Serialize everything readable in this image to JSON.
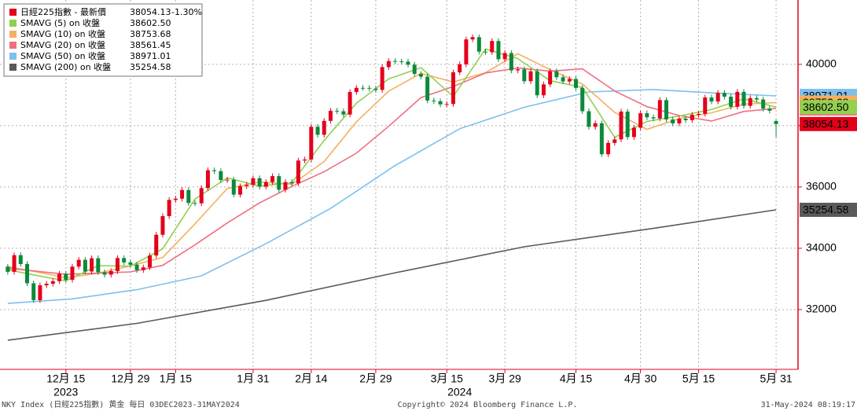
{
  "chart_data": {
    "type": "candlestick",
    "up_color": "#e3001b",
    "down_color": "#0b8a3a",
    "xlim": [
      -1.2,
      122.4
    ],
    "ylim": [
      30050,
      42100
    ],
    "yticks": [
      32000,
      34000,
      36000,
      38000,
      40000
    ],
    "xticks": [
      {
        "value": 9,
        "label": "12月 15"
      },
      {
        "value": 19,
        "label": "12月 29"
      },
      {
        "value": 26,
        "label": "1月 15"
      },
      {
        "value": 38,
        "label": "1月 31"
      },
      {
        "value": 47,
        "label": "2月 14"
      },
      {
        "value": 57,
        "label": "2月 29"
      },
      {
        "value": 68,
        "label": "3月 15"
      },
      {
        "value": 77,
        "label": "3月 29"
      },
      {
        "value": 88,
        "label": "4月 15"
      },
      {
        "value": 98,
        "label": "4月 30"
      },
      {
        "value": 107,
        "label": "5月 15"
      },
      {
        "value": 119,
        "label": "5月 31"
      }
    ],
    "year_labels": [
      {
        "value": 9,
        "label": "2023"
      },
      {
        "value": 70,
        "label": "2024"
      }
    ],
    "grid": true,
    "price": {
      "name": "日經225指數 - 最新價",
      "color": "#e3001b",
      "last": 38054.13,
      "last_label": "38054.13",
      "change": -1.3,
      "change_label": "-1.30%"
    },
    "ohlc": [
      [
        33400,
        33490,
        33141,
        33231
      ],
      [
        33231,
        33865,
        33141,
        33775
      ],
      [
        33775,
        33865,
        33396,
        33486
      ],
      [
        33486,
        33576,
        32768,
        32858
      ],
      [
        32858,
        32948,
        32217,
        32307
      ],
      [
        32307,
        32881,
        32217,
        32791
      ],
      [
        32791,
        32933,
        32701,
        32843
      ],
      [
        32843,
        33016,
        32753,
        32926
      ],
      [
        32926,
        33259,
        32836,
        33169
      ],
      [
        33169,
        33259,
        32880,
        32970
      ],
      [
        32970,
        33492,
        32880,
        33402
      ],
      [
        33402,
        33714,
        33312,
        33624
      ],
      [
        33624,
        33714,
        33152,
        33242
      ],
      [
        33242,
        33765,
        33152,
        33675
      ],
      [
        33675,
        33765,
        33129,
        33219
      ],
      [
        33219,
        33309,
        33050,
        33140
      ],
      [
        33140,
        33345,
        33050,
        33255
      ],
      [
        33255,
        33771,
        33165,
        33681
      ],
      [
        33681,
        33771,
        33450,
        33540
      ],
      [
        33540,
        33630,
        33374,
        33464
      ],
      [
        33464,
        33554,
        33198,
        33288
      ],
      [
        33288,
        33467,
        33198,
        33377
      ],
      [
        33377,
        33853,
        33287,
        33763
      ],
      [
        33763,
        34531,
        33673,
        34441
      ],
      [
        34441,
        35139,
        34351,
        35049
      ],
      [
        35049,
        35667,
        34959,
        35577
      ],
      [
        35577,
        35709,
        35487,
        35619
      ],
      [
        35619,
        35991,
        35529,
        35901
      ],
      [
        35901,
        35991,
        35387,
        35477
      ],
      [
        35477,
        35567,
        35377,
        35467
      ],
      [
        35467,
        36053,
        35377,
        35963
      ],
      [
        35963,
        36636,
        35873,
        36546
      ],
      [
        36546,
        36636,
        36427,
        36517
      ],
      [
        36517,
        36607,
        36136,
        36226
      ],
      [
        36226,
        36326,
        36136,
        36236
      ],
      [
        36236,
        36326,
        35661,
        35751
      ],
      [
        35751,
        36116,
        35661,
        36026
      ],
      [
        36026,
        36155,
        35936,
        36065
      ],
      [
        36065,
        36376,
        35975,
        36286
      ],
      [
        36286,
        36376,
        35921,
        36011
      ],
      [
        36011,
        36249,
        35921,
        36159
      ],
      [
        36159,
        36444,
        36069,
        36354
      ],
      [
        36354,
        36444,
        35819,
        35909
      ],
      [
        35909,
        36250,
        35819,
        36160
      ],
      [
        36160,
        36250,
        36029,
        36119
      ],
      [
        36119,
        36953,
        36029,
        36863
      ],
      [
        36863,
        36987,
        36773,
        36897
      ],
      [
        36897,
        38053,
        36807,
        37963
      ],
      [
        37963,
        38053,
        37613,
        37703
      ],
      [
        37703,
        38247,
        37613,
        38157
      ],
      [
        38157,
        38577,
        38067,
        38487
      ],
      [
        38487,
        38577,
        38380,
        38470
      ],
      [
        38470,
        38560,
        38273,
        38363
      ],
      [
        38363,
        39188,
        38273,
        39098
      ],
      [
        39098,
        39324,
        39008,
        39234
      ],
      [
        39234,
        39324,
        39143,
        39233
      ],
      [
        39233,
        39323,
        39118,
        39208
      ],
      [
        39208,
        39298,
        39076,
        39166
      ],
      [
        39166,
        40000,
        39076,
        39910
      ],
      [
        39910,
        40199,
        39820,
        40109
      ],
      [
        40109,
        40199,
        40007,
        40097
      ],
      [
        40097,
        40187,
        40000,
        40090
      ],
      [
        40090,
        40180,
        39901,
        39991
      ],
      [
        39991,
        40081,
        39598,
        39688
      ],
      [
        39688,
        39778,
        39508,
        39598
      ],
      [
        39598,
        39688,
        38730,
        38820
      ],
      [
        38820,
        38910,
        38707,
        38797
      ],
      [
        38797,
        38887,
        38605,
        38695
      ],
      [
        38695,
        38797,
        38605,
        38707
      ],
      [
        38707,
        39830,
        38617,
        39740
      ],
      [
        39740,
        40093,
        39650,
        40003
      ],
      [
        40003,
        40905,
        39913,
        40815
      ],
      [
        40815,
        40978,
        40725,
        40888
      ],
      [
        40888,
        40978,
        40324,
        40414
      ],
      [
        40414,
        40504,
        40308,
        40398
      ],
      [
        40398,
        40852,
        40308,
        40762
      ],
      [
        40762,
        40852,
        40078,
        40168
      ],
      [
        40168,
        40459,
        40078,
        40369
      ],
      [
        40369,
        40459,
        39713,
        39803
      ],
      [
        39803,
        39928,
        39713,
        39838
      ],
      [
        39838,
        39928,
        39361,
        39451
      ],
      [
        39451,
        39863,
        39361,
        39773
      ],
      [
        39773,
        39863,
        38902,
        38992
      ],
      [
        38992,
        39437,
        38902,
        39347
      ],
      [
        39347,
        39863,
        39257,
        39773
      ],
      [
        39773,
        39863,
        39491,
        39581
      ],
      [
        39581,
        39671,
        39352,
        39442
      ],
      [
        39442,
        39613,
        39352,
        39523
      ],
      [
        39523,
        39613,
        39142,
        39232
      ],
      [
        39232,
        39322,
        38381,
        38471
      ],
      [
        38471,
        38561,
        37872,
        37962
      ],
      [
        37962,
        38169,
        37872,
        38079
      ],
      [
        38079,
        38169,
        36978,
        37068
      ],
      [
        37068,
        37528,
        36978,
        37438
      ],
      [
        37438,
        37642,
        37348,
        37552
      ],
      [
        37552,
        38550,
        37462,
        38460
      ],
      [
        38460,
        38550,
        37538,
        37628
      ],
      [
        37628,
        38024,
        37538,
        37934
      ],
      [
        37934,
        38495,
        37844,
        38405
      ],
      [
        38405,
        38495,
        38184,
        38274
      ],
      [
        38274,
        38364,
        38146,
        38236
      ],
      [
        38236,
        38925,
        38146,
        38835
      ],
      [
        38835,
        38925,
        38112,
        38202
      ],
      [
        38202,
        38292,
        37983,
        38073
      ],
      [
        38073,
        38319,
        37983,
        38229
      ],
      [
        38229,
        38319,
        38089,
        38179
      ],
      [
        38179,
        38446,
        38089,
        38356
      ],
      [
        38356,
        38475,
        38266,
        38385
      ],
      [
        38385,
        39010,
        38295,
        38920
      ],
      [
        38920,
        39010,
        38697,
        38787
      ],
      [
        38787,
        39159,
        38697,
        39069
      ],
      [
        39069,
        39159,
        38856,
        38946
      ],
      [
        38946,
        39036,
        38527,
        38617
      ],
      [
        38617,
        39193,
        38527,
        39103
      ],
      [
        39103,
        39193,
        38556,
        38646
      ],
      [
        38646,
        38990,
        38556,
        38900
      ],
      [
        38900,
        38990,
        38765,
        38855
      ],
      [
        38855,
        38945,
        38466,
        38556
      ],
      [
        38556,
        38646,
        38397,
        38487
      ],
      [
        38150,
        38200,
        37620,
        38054.13
      ]
    ],
    "series": [
      {
        "name": "SMAVG (200)  on 收盤",
        "color": "#5a5a5a",
        "tag_text": "#ffffff",
        "last": 35254.58,
        "last_label": "35254.58",
        "x": [
          0,
          20,
          40,
          60,
          80,
          100,
          119
        ],
        "values": [
          31000,
          31550,
          32300,
          33200,
          34050,
          34650,
          35254.58
        ]
      },
      {
        "name": "SMAVG (50)  on 收盤",
        "color": "#7cc0ef",
        "tag_text": "#1a3a5a",
        "last": 38971.01,
        "last_label": "38971.01",
        "x": [
          0,
          10,
          20,
          30,
          40,
          50,
          60,
          70,
          80,
          90,
          100,
          110,
          119
        ],
        "values": [
          32200,
          32350,
          32650,
          33100,
          34150,
          35300,
          36700,
          37900,
          38600,
          39100,
          39180,
          39060,
          38971.01
        ]
      },
      {
        "name": "SMAVG (10)  on 收盤",
        "color": "#f5b05e",
        "tag_text": "#000000",
        "last": 38753.68,
        "last_label": "38753.68",
        "x": [
          0,
          4,
          9,
          14,
          19,
          24,
          29,
          34,
          39,
          44,
          49,
          54,
          59,
          64,
          69,
          74,
          79,
          84,
          89,
          94,
          99,
          104,
          109,
          114,
          119
        ],
        "values": [
          33400,
          33250,
          33036,
          33186,
          33424,
          33700,
          34796,
          35953,
          36163,
          36084,
          36829,
          38124,
          39128,
          39709,
          39423,
          39728,
          40346,
          39828,
          39359,
          38435,
          37880,
          38228,
          38420,
          38701,
          38753.68
        ]
      },
      {
        "name": "SMAVG (20)  on 收盤",
        "color": "#ef6f80",
        "tag_text": "#000000",
        "last": 38561.45,
        "last_label": "38561.45",
        "x": [
          0,
          9,
          19,
          24,
          29,
          34,
          39,
          44,
          49,
          54,
          59,
          64,
          69,
          74,
          79,
          84,
          89,
          94,
          99,
          104,
          109,
          114,
          119
        ],
        "values": [
          33350,
          33150,
          33230,
          33443,
          34110,
          34827,
          35480,
          36019,
          36496,
          37104,
          37979,
          38917,
          39276,
          39719,
          39885,
          39778,
          39853,
          39132,
          38620,
          38332,
          38150,
          38465,
          38561.45
        ]
      },
      {
        "name": "SMAVG (5)  on 收盤",
        "color": "#92d050",
        "tag_text": "#000000",
        "last": 38602.5,
        "last_label": "38602.50",
        "x": [
          0,
          4,
          9,
          14,
          19,
          24,
          29,
          34,
          39,
          44,
          49,
          54,
          59,
          64,
          69,
          74,
          79,
          84,
          89,
          94,
          99,
          104,
          109,
          114,
          119
        ],
        "values": [
          33300,
          33131,
          32940,
          33432,
          33416,
          33984,
          35608,
          36298,
          36028,
          36140,
          37517,
          38730,
          39525,
          39893,
          38952,
          40504,
          40188,
          39467,
          39250,
          37620,
          38140,
          38315,
          38525,
          38876,
          38602.5
        ]
      }
    ],
    "legend_order": [
      4,
      2,
      3,
      1,
      0
    ],
    "footer": {
      "left": "NKY Index (日經225指數) 黄金  每日 03DEC2023-31MAY2024",
      "center": "Copyright© 2024 Bloomberg Finance L.P.",
      "right": "31-May-2024 08:19:17"
    }
  }
}
